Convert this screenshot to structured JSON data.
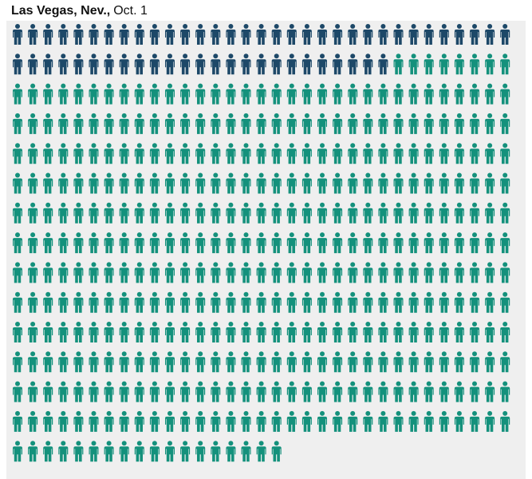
{
  "chart_data": {
    "type": "pictogram",
    "title": "Las Vegas, Nev.,",
    "subtitle": "Oct. 1",
    "columns": 33,
    "series": [
      {
        "color": "#1d4868",
        "values": [
          58
        ]
      },
      {
        "color": "#14917c",
        "values": [
          422
        ]
      }
    ]
  }
}
